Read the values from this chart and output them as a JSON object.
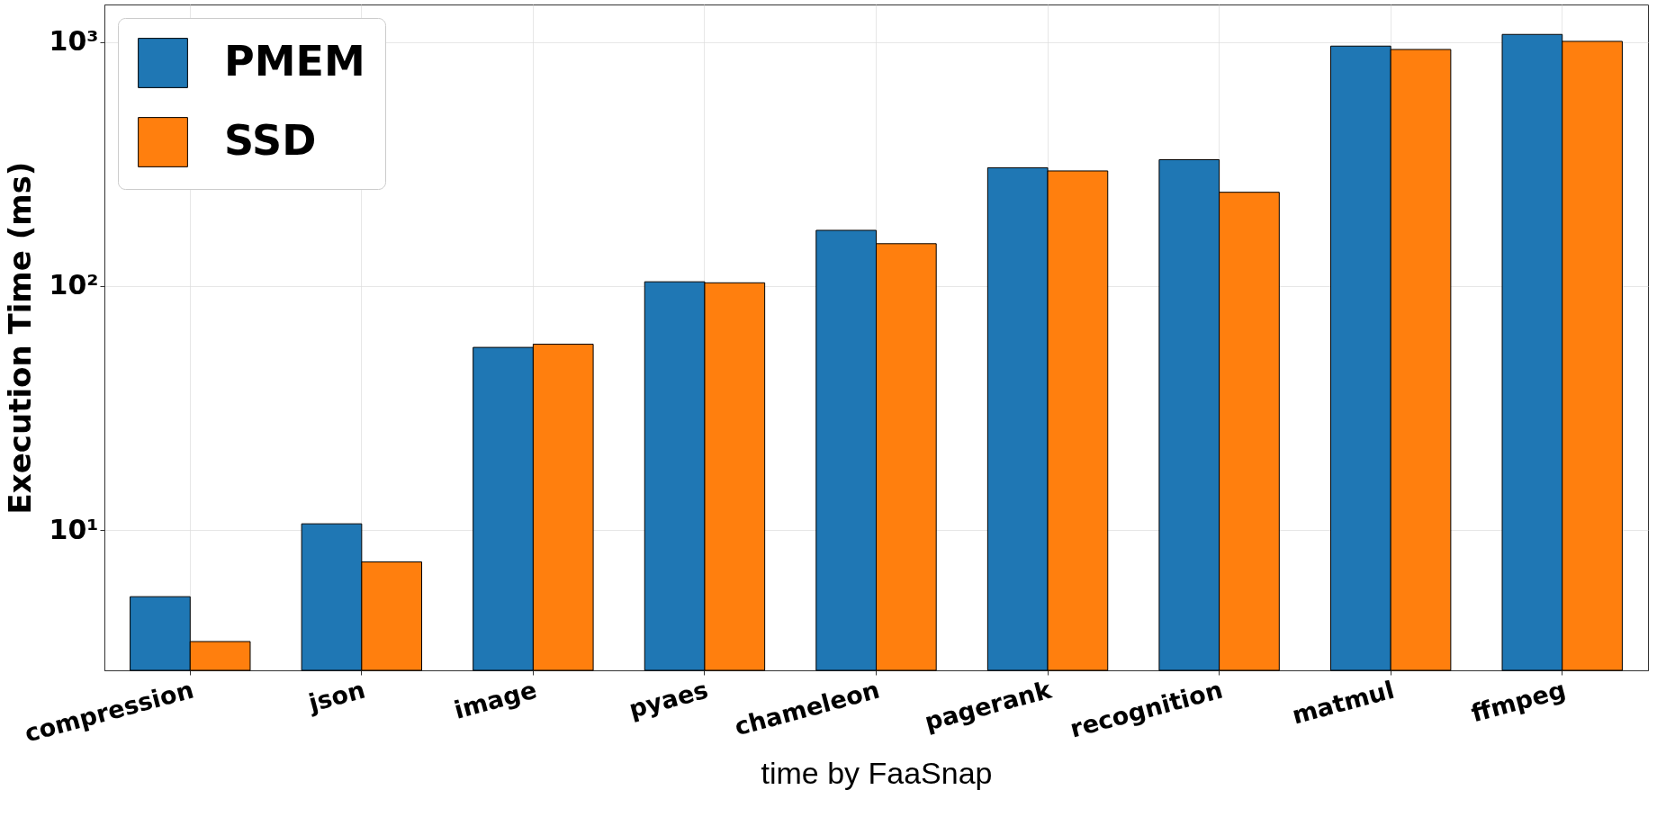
{
  "chart_data": {
    "type": "bar",
    "xlabel": "time by FaaSnap",
    "ylabel": "Execution Time (ms)",
    "categories": [
      "compression",
      "json",
      "image",
      "pyaes",
      "chameleon",
      "pagerank",
      "recognition",
      "matmul",
      "ffmpeg"
    ],
    "series": [
      {
        "name": "PMEM",
        "color": "#1f77b4",
        "values": [
          5.33,
          10.6,
          56,
          104,
          169,
          305,
          329,
          961,
          1073
        ]
      },
      {
        "name": "SSD",
        "color": "#ff7f0e",
        "values": [
          3.49,
          7.4,
          57.7,
          103,
          149,
          296,
          242,
          931,
          1005
        ]
      }
    ],
    "log": true,
    "ylim": [
      2.66,
      1423
    ],
    "yticks": [
      {
        "value": 10,
        "label": "10¹"
      },
      {
        "value": 100,
        "label": "10²"
      },
      {
        "value": 1000,
        "label": "10³"
      }
    ],
    "grid": true,
    "legend": "top left"
  }
}
